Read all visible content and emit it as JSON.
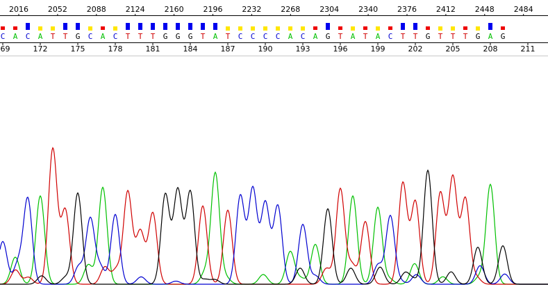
{
  "chart_data": {
    "type": "line",
    "colors": {
      "A": "#00c000",
      "C": "#0000d0",
      "G": "#000000",
      "T": "#d00000"
    },
    "qv_colors": {
      "high": "#0000ee",
      "mid": "#ffe600",
      "low": "#ee0000"
    },
    "scan_ticks": [
      "2016",
      "2052",
      "2088",
      "2124",
      "2160",
      "2196",
      "2232",
      "2268",
      "2304",
      "2340",
      "2376",
      "2412",
      "2448",
      "2484"
    ],
    "bases": [
      "C",
      "A",
      "C",
      "A",
      "T",
      "T",
      "G",
      "C",
      "A",
      "C",
      "T",
      "T",
      "T",
      "G",
      "G",
      "G",
      "T",
      "A",
      "T",
      "C",
      "C",
      "C",
      "C",
      "A",
      "C",
      "A",
      "G",
      "T",
      "A",
      "T",
      "A",
      "C",
      "T",
      "T",
      "G",
      "T",
      "T",
      "T",
      "G",
      "A",
      "G"
    ],
    "base_positions": [
      "169",
      "172",
      "175",
      "178",
      "181",
      "184",
      "187",
      "190",
      "193",
      "196",
      "199",
      "202",
      "205",
      "208",
      "211"
    ],
    "qv_levels": [
      "low",
      "low",
      "high",
      "mid",
      "mid",
      "high",
      "high",
      "mid",
      "low",
      "mid",
      "high",
      "high",
      "high",
      "high",
      "high",
      "high",
      "high",
      "high",
      "mid",
      "mid",
      "mid",
      "mid",
      "mid",
      "mid",
      "mid",
      "low",
      "high",
      "low",
      "mid",
      "low",
      "mid",
      "low",
      "high",
      "high",
      "low",
      "mid",
      "mid",
      "low",
      "mid",
      "high",
      "low"
    ],
    "peak_heights": [
      0.3,
      0.19,
      0.6,
      0.62,
      0.95,
      0.52,
      0.64,
      0.46,
      0.68,
      0.49,
      0.65,
      0.37,
      0.5,
      0.63,
      0.66,
      0.65,
      0.55,
      0.78,
      0.52,
      0.62,
      0.67,
      0.57,
      0.55,
      0.23,
      0.42,
      0.28,
      0.53,
      0.67,
      0.62,
      0.44,
      0.54,
      0.48,
      0.71,
      0.58,
      0.8,
      0.64,
      0.75,
      0.6,
      0.26,
      0.7,
      0.27
    ]
  }
}
